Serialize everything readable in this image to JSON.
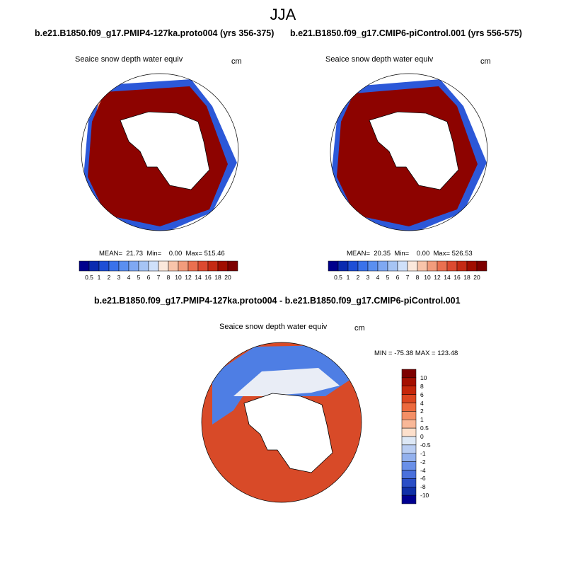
{
  "season": "JJA",
  "panels": [
    {
      "caption": "b.e21.B1850.f09_g17.PMIP4-127ka.proto004 (yrs 356-375)",
      "variable": "Seaice snow depth water equiv",
      "units": "cm",
      "stats": "MEAN=  21.73  Min=    0.00  Max= 515.46"
    },
    {
      "caption": "b.e21.B1850.f09_g17.CMIP6-piControl.001 (yrs 556-575)",
      "variable": "Seaice snow depth water equiv",
      "units": "cm",
      "stats": "MEAN=  20.35  Min=    0.00  Max= 526.53"
    }
  ],
  "top_colorbar": {
    "labels": [
      "0.5",
      "1",
      "2",
      "3",
      "4",
      "5",
      "6",
      "7",
      "8",
      "10",
      "12",
      "14",
      "16",
      "18",
      "20"
    ],
    "colors": [
      "#00008c",
      "#0a2bb0",
      "#1e4fd6",
      "#3a72ea",
      "#5a8ff0",
      "#7fa8f2",
      "#a6c4f4",
      "#cfe0fa",
      "#fbe8dc",
      "#f8c4aa",
      "#f29c7c",
      "#ea7050",
      "#dc4a30",
      "#c52a14",
      "#a00d00",
      "#7d0000"
    ]
  },
  "diff_panel": {
    "caption": "b.e21.B1850.f09_g17.PMIP4-127ka.proto004 - b.e21.B1850.f09_g17.CMIP6-piControl.001",
    "variable": "Seaice snow depth water equiv",
    "units": "cm",
    "minmax": "MIN = -75.38 MAX = 123.48"
  },
  "diff_colorbar": {
    "labels": [
      "10",
      "8",
      "6",
      "4",
      "2",
      "1",
      "0.5",
      "0",
      "-0.5",
      "-1",
      "-2",
      "-4",
      "-6",
      "-8",
      "-10"
    ],
    "colors": [
      "#7d0000",
      "#a50f00",
      "#c4260a",
      "#dc4620",
      "#ec6a3e",
      "#f48f66",
      "#f9b898",
      "#fde0cc",
      "#dde8f6",
      "#b9cdf2",
      "#93b1ee",
      "#6a90e8",
      "#4a70dc",
      "#2a4ec6",
      "#1030a8",
      "#000090"
    ]
  }
}
